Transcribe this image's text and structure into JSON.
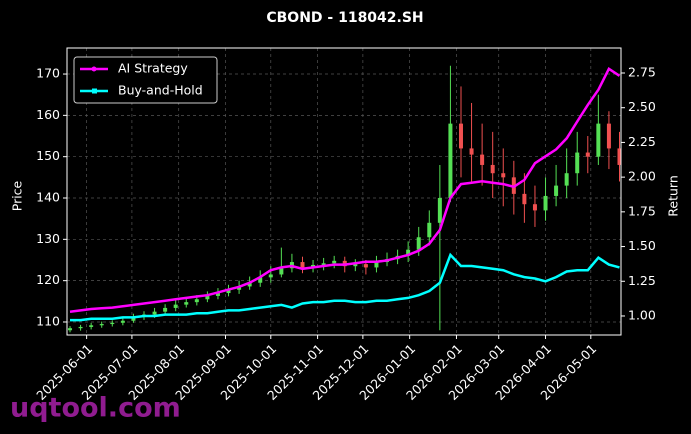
{
  "chart_data": {
    "type": "candlestick",
    "title": "CBOND - 118042.SH",
    "y_label": "Price",
    "y2_label": "Return",
    "watermark": "uqtool.com",
    "x": [
      "2025-05-21",
      "2025-05-28",
      "2025-06-04",
      "2025-06-11",
      "2025-06-18",
      "2025-06-25",
      "2025-07-02",
      "2025-07-09",
      "2025-07-16",
      "2025-07-23",
      "2025-07-30",
      "2025-08-06",
      "2025-08-13",
      "2025-08-20",
      "2025-08-27",
      "2025-09-03",
      "2025-09-10",
      "2025-09-17",
      "2025-09-24",
      "2025-10-01",
      "2025-10-08",
      "2025-10-15",
      "2025-10-22",
      "2025-10-29",
      "2025-11-05",
      "2025-11-12",
      "2025-11-19",
      "2025-11-26",
      "2025-12-03",
      "2025-12-10",
      "2025-12-17",
      "2025-12-24",
      "2025-12-31",
      "2026-01-07",
      "2026-01-14",
      "2026-01-21",
      "2026-01-28",
      "2026-02-04",
      "2026-02-11",
      "2026-02-18",
      "2026-02-25",
      "2026-03-04",
      "2026-03-11",
      "2026-03-18",
      "2026-03-25",
      "2026-04-01",
      "2026-04-08",
      "2026-04-15",
      "2026-04-22",
      "2026-04-29",
      "2026-05-06",
      "2026-05-13",
      "2026-05-20"
    ],
    "open": [
      108.0,
      108.5,
      108.8,
      109.2,
      109.5,
      109.8,
      110.3,
      111.2,
      111.8,
      112.5,
      113.4,
      114.2,
      114.8,
      115.5,
      116.3,
      117.0,
      117.8,
      118.6,
      119.5,
      120.8,
      121.5,
      123.0,
      124.5,
      123.2,
      123.8,
      124.2,
      124.8,
      123.5,
      124.0,
      123.2,
      124.5,
      125.2,
      126.0,
      127.5,
      130.5,
      134.0,
      140.0,
      158.0,
      152.0,
      150.5,
      148.0,
      146.0,
      145.0,
      141.0,
      138.5,
      137.0,
      140.5,
      143.0,
      146.0,
      151.0,
      150.0,
      158.0,
      152.0
    ],
    "high": [
      109.0,
      109.3,
      109.8,
      110.1,
      110.4,
      111.0,
      112.0,
      112.6,
      113.4,
      114.3,
      115.2,
      115.8,
      116.5,
      117.4,
      118.2,
      119.0,
      120.0,
      121.0,
      122.5,
      123.5,
      128.0,
      126.5,
      125.8,
      125.0,
      125.5,
      126.0,
      125.8,
      125.2,
      125.0,
      126.0,
      126.8,
      127.5,
      129.5,
      133.0,
      137.0,
      148.0,
      172.0,
      167.0,
      163.0,
      158.0,
      156.0,
      152.0,
      149.0,
      146.0,
      143.0,
      145.0,
      148.0,
      152.0,
      156.0,
      155.0,
      165.0,
      161.0,
      156.0
    ],
    "low": [
      107.5,
      107.9,
      108.2,
      108.6,
      108.9,
      109.2,
      109.8,
      110.5,
      111.0,
      111.8,
      112.6,
      113.5,
      114.0,
      114.8,
      115.5,
      116.2,
      116.8,
      117.8,
      118.5,
      119.5,
      120.8,
      122.0,
      121.8,
      122.0,
      122.5,
      123.0,
      122.0,
      122.3,
      121.5,
      122.0,
      123.5,
      124.0,
      124.5,
      126.0,
      128.5,
      108.0,
      139.0,
      145.0,
      144.0,
      143.0,
      140.0,
      138.0,
      136.0,
      134.0,
      133.0,
      134.5,
      138.0,
      140.0,
      143.0,
      146.0,
      148.0,
      147.0,
      144.0
    ],
    "close": [
      108.5,
      108.8,
      109.2,
      109.5,
      109.8,
      110.3,
      111.2,
      111.8,
      112.5,
      113.4,
      114.2,
      114.8,
      115.5,
      116.3,
      117.0,
      117.8,
      118.6,
      119.5,
      120.8,
      121.5,
      123.0,
      124.5,
      123.2,
      123.8,
      124.2,
      124.8,
      123.5,
      124.0,
      123.2,
      124.5,
      125.2,
      126.0,
      127.5,
      130.5,
      134.0,
      140.0,
      158.0,
      152.0,
      150.5,
      148.0,
      146.0,
      145.0,
      141.0,
      138.5,
      137.0,
      140.5,
      143.0,
      146.0,
      151.0,
      150.0,
      158.0,
      152.0,
      148.0
    ],
    "up_color": "#55e055",
    "down_color": "#f05050",
    "series": [
      {
        "name": "AI Strategy",
        "color": "#ff00ff",
        "axis": "y2",
        "values": [
          1.03,
          1.04,
          1.05,
          1.055,
          1.06,
          1.07,
          1.08,
          1.09,
          1.1,
          1.11,
          1.12,
          1.13,
          1.14,
          1.15,
          1.17,
          1.19,
          1.21,
          1.24,
          1.28,
          1.33,
          1.35,
          1.36,
          1.34,
          1.35,
          1.36,
          1.37,
          1.37,
          1.38,
          1.39,
          1.39,
          1.4,
          1.42,
          1.44,
          1.47,
          1.52,
          1.62,
          1.85,
          1.95,
          1.96,
          1.97,
          1.96,
          1.95,
          1.93,
          1.98,
          2.1,
          2.15,
          2.2,
          2.28,
          2.4,
          2.52,
          2.63,
          2.78,
          2.73
        ]
      },
      {
        "name": "Buy-and-Hold",
        "color": "#00ffff",
        "axis": "y2",
        "values": [
          0.97,
          0.97,
          0.98,
          0.98,
          0.98,
          0.99,
          0.99,
          1.0,
          1.0,
          1.01,
          1.01,
          1.01,
          1.02,
          1.02,
          1.03,
          1.04,
          1.04,
          1.05,
          1.06,
          1.07,
          1.08,
          1.06,
          1.09,
          1.1,
          1.1,
          1.11,
          1.11,
          1.1,
          1.1,
          1.11,
          1.11,
          1.12,
          1.13,
          1.15,
          1.18,
          1.24,
          1.44,
          1.36,
          1.36,
          1.35,
          1.34,
          1.33,
          1.3,
          1.28,
          1.27,
          1.25,
          1.28,
          1.32,
          1.33,
          1.33,
          1.42,
          1.37,
          1.35
        ]
      }
    ],
    "xlim": [
      "2025-05-19",
      "2026-05-21"
    ],
    "xticks": [
      "2025-06-01",
      "2025-07-01",
      "2025-08-01",
      "2025-09-01",
      "2025-10-01",
      "2025-11-01",
      "2025-12-01",
      "2026-01-01",
      "2026-02-01",
      "2026-03-01",
      "2026-04-01",
      "2026-05-01"
    ],
    "ylim": [
      106.85,
      176.3
    ],
    "yticks": [
      110,
      120,
      130,
      140,
      150,
      160,
      170
    ],
    "y2lim": [
      0.863,
      2.93
    ],
    "y2ticks": [
      {
        "value": 1.0,
        "label": "1.00"
      },
      1.25,
      {
        "value": 1.5,
        "label": "1.50"
      },
      1.75,
      {
        "value": 2.0,
        "label": "2.00"
      },
      2.25,
      {
        "value": 2.5,
        "label": "2.50"
      },
      2.75
    ],
    "grid": true,
    "legend": "upper left"
  }
}
